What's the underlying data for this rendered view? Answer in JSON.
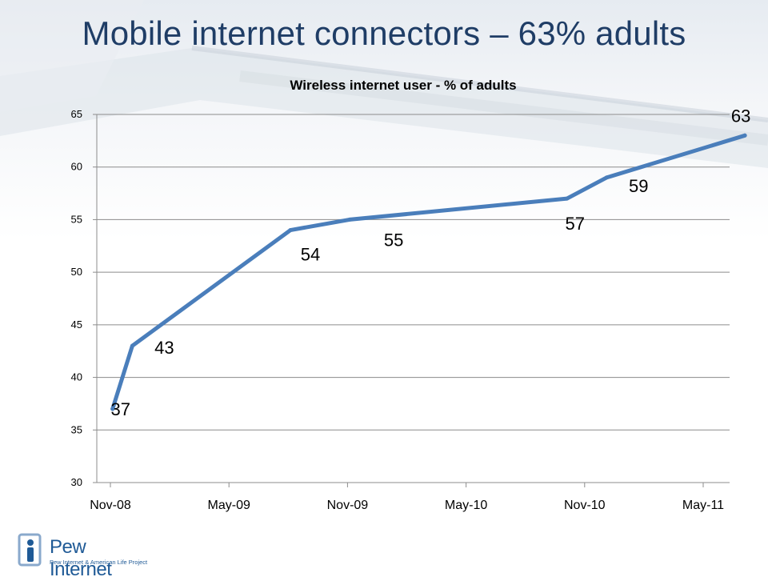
{
  "slide": {
    "title": "Mobile internet connectors – 63% adults"
  },
  "logo": {
    "name": "Pew Internet",
    "subtitle": "Pew Internet & American Life Project"
  },
  "colors": {
    "title": "#1f3d66",
    "series_line": "#4a7ebb",
    "gridline": "#8c8c8c"
  },
  "chart_data": {
    "type": "line",
    "title": "Wireless internet user - % of adults",
    "xlabel": "",
    "ylabel": "",
    "ylim": [
      30,
      65
    ],
    "yticks": [
      30,
      35,
      40,
      45,
      50,
      55,
      60,
      65
    ],
    "xticks": [
      "Nov-08",
      "May-09",
      "Nov-09",
      "May-10",
      "Nov-10",
      "May-11"
    ],
    "grid": true,
    "legend": "none",
    "series": [
      {
        "x": [
          "2008-12",
          "2009-01",
          "2009-09",
          "2009-12",
          "2010-11",
          "2011-01",
          "2011-08"
        ],
        "values": [
          37,
          43,
          54,
          55,
          57,
          59,
          63
        ],
        "labels": [
          "37",
          "43",
          "54",
          "55",
          "57",
          "59",
          "63"
        ]
      }
    ]
  }
}
